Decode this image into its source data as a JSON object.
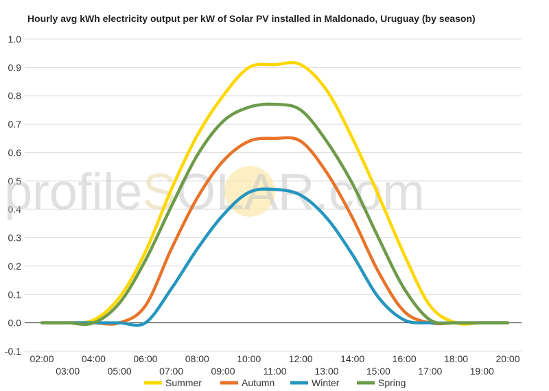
{
  "chart_data": {
    "type": "line",
    "title": "Hourly avg kWh electricity output per kW of Solar PV installed in Maldonado, Uruguay (by season)",
    "xlabel": "",
    "ylabel": "",
    "ylim": [
      -0.1,
      1.0
    ],
    "yticks": [
      "-0.1",
      "0.0",
      "0.1",
      "0.2",
      "0.3",
      "0.4",
      "0.5",
      "0.6",
      "0.7",
      "0.8",
      "0.9",
      "1.0"
    ],
    "categories": [
      "02:00",
      "03:00",
      "04:00",
      "05:00",
      "06:00",
      "07:00",
      "08:00",
      "09:00",
      "10:00",
      "11:00",
      "12:00",
      "13:00",
      "14:00",
      "15:00",
      "16:00",
      "17:00",
      "18:00",
      "19:00",
      "20:00"
    ],
    "series": [
      {
        "name": "Summer",
        "color": "#FFD700",
        "values": [
          0.0,
          0.0,
          0.01,
          0.09,
          0.25,
          0.47,
          0.66,
          0.8,
          0.9,
          0.91,
          0.91,
          0.82,
          0.65,
          0.45,
          0.24,
          0.06,
          0.0,
          0.0,
          0.0
        ]
      },
      {
        "name": "Autumn",
        "color": "#E8732A",
        "values": [
          0.0,
          0.0,
          0.0,
          0.0,
          0.06,
          0.26,
          0.44,
          0.57,
          0.64,
          0.65,
          0.64,
          0.53,
          0.37,
          0.18,
          0.04,
          0.0,
          0.0,
          0.0,
          0.0
        ]
      },
      {
        "name": "Winter",
        "color": "#2596BE",
        "values": [
          0.0,
          0.0,
          0.0,
          0.0,
          0.0,
          0.12,
          0.26,
          0.38,
          0.46,
          0.47,
          0.45,
          0.37,
          0.24,
          0.09,
          0.01,
          0.0,
          0.0,
          0.0,
          0.0
        ]
      },
      {
        "name": "Spring",
        "color": "#6E9B4A",
        "values": [
          0.0,
          0.0,
          0.0,
          0.07,
          0.22,
          0.41,
          0.59,
          0.71,
          0.76,
          0.77,
          0.75,
          0.64,
          0.49,
          0.3,
          0.12,
          0.01,
          0.0,
          0.0,
          0.0
        ]
      }
    ],
    "grid": true,
    "legend": "bottom"
  },
  "watermark": {
    "left": "profile",
    "sun": "S",
    "right": "OLAR.com"
  }
}
